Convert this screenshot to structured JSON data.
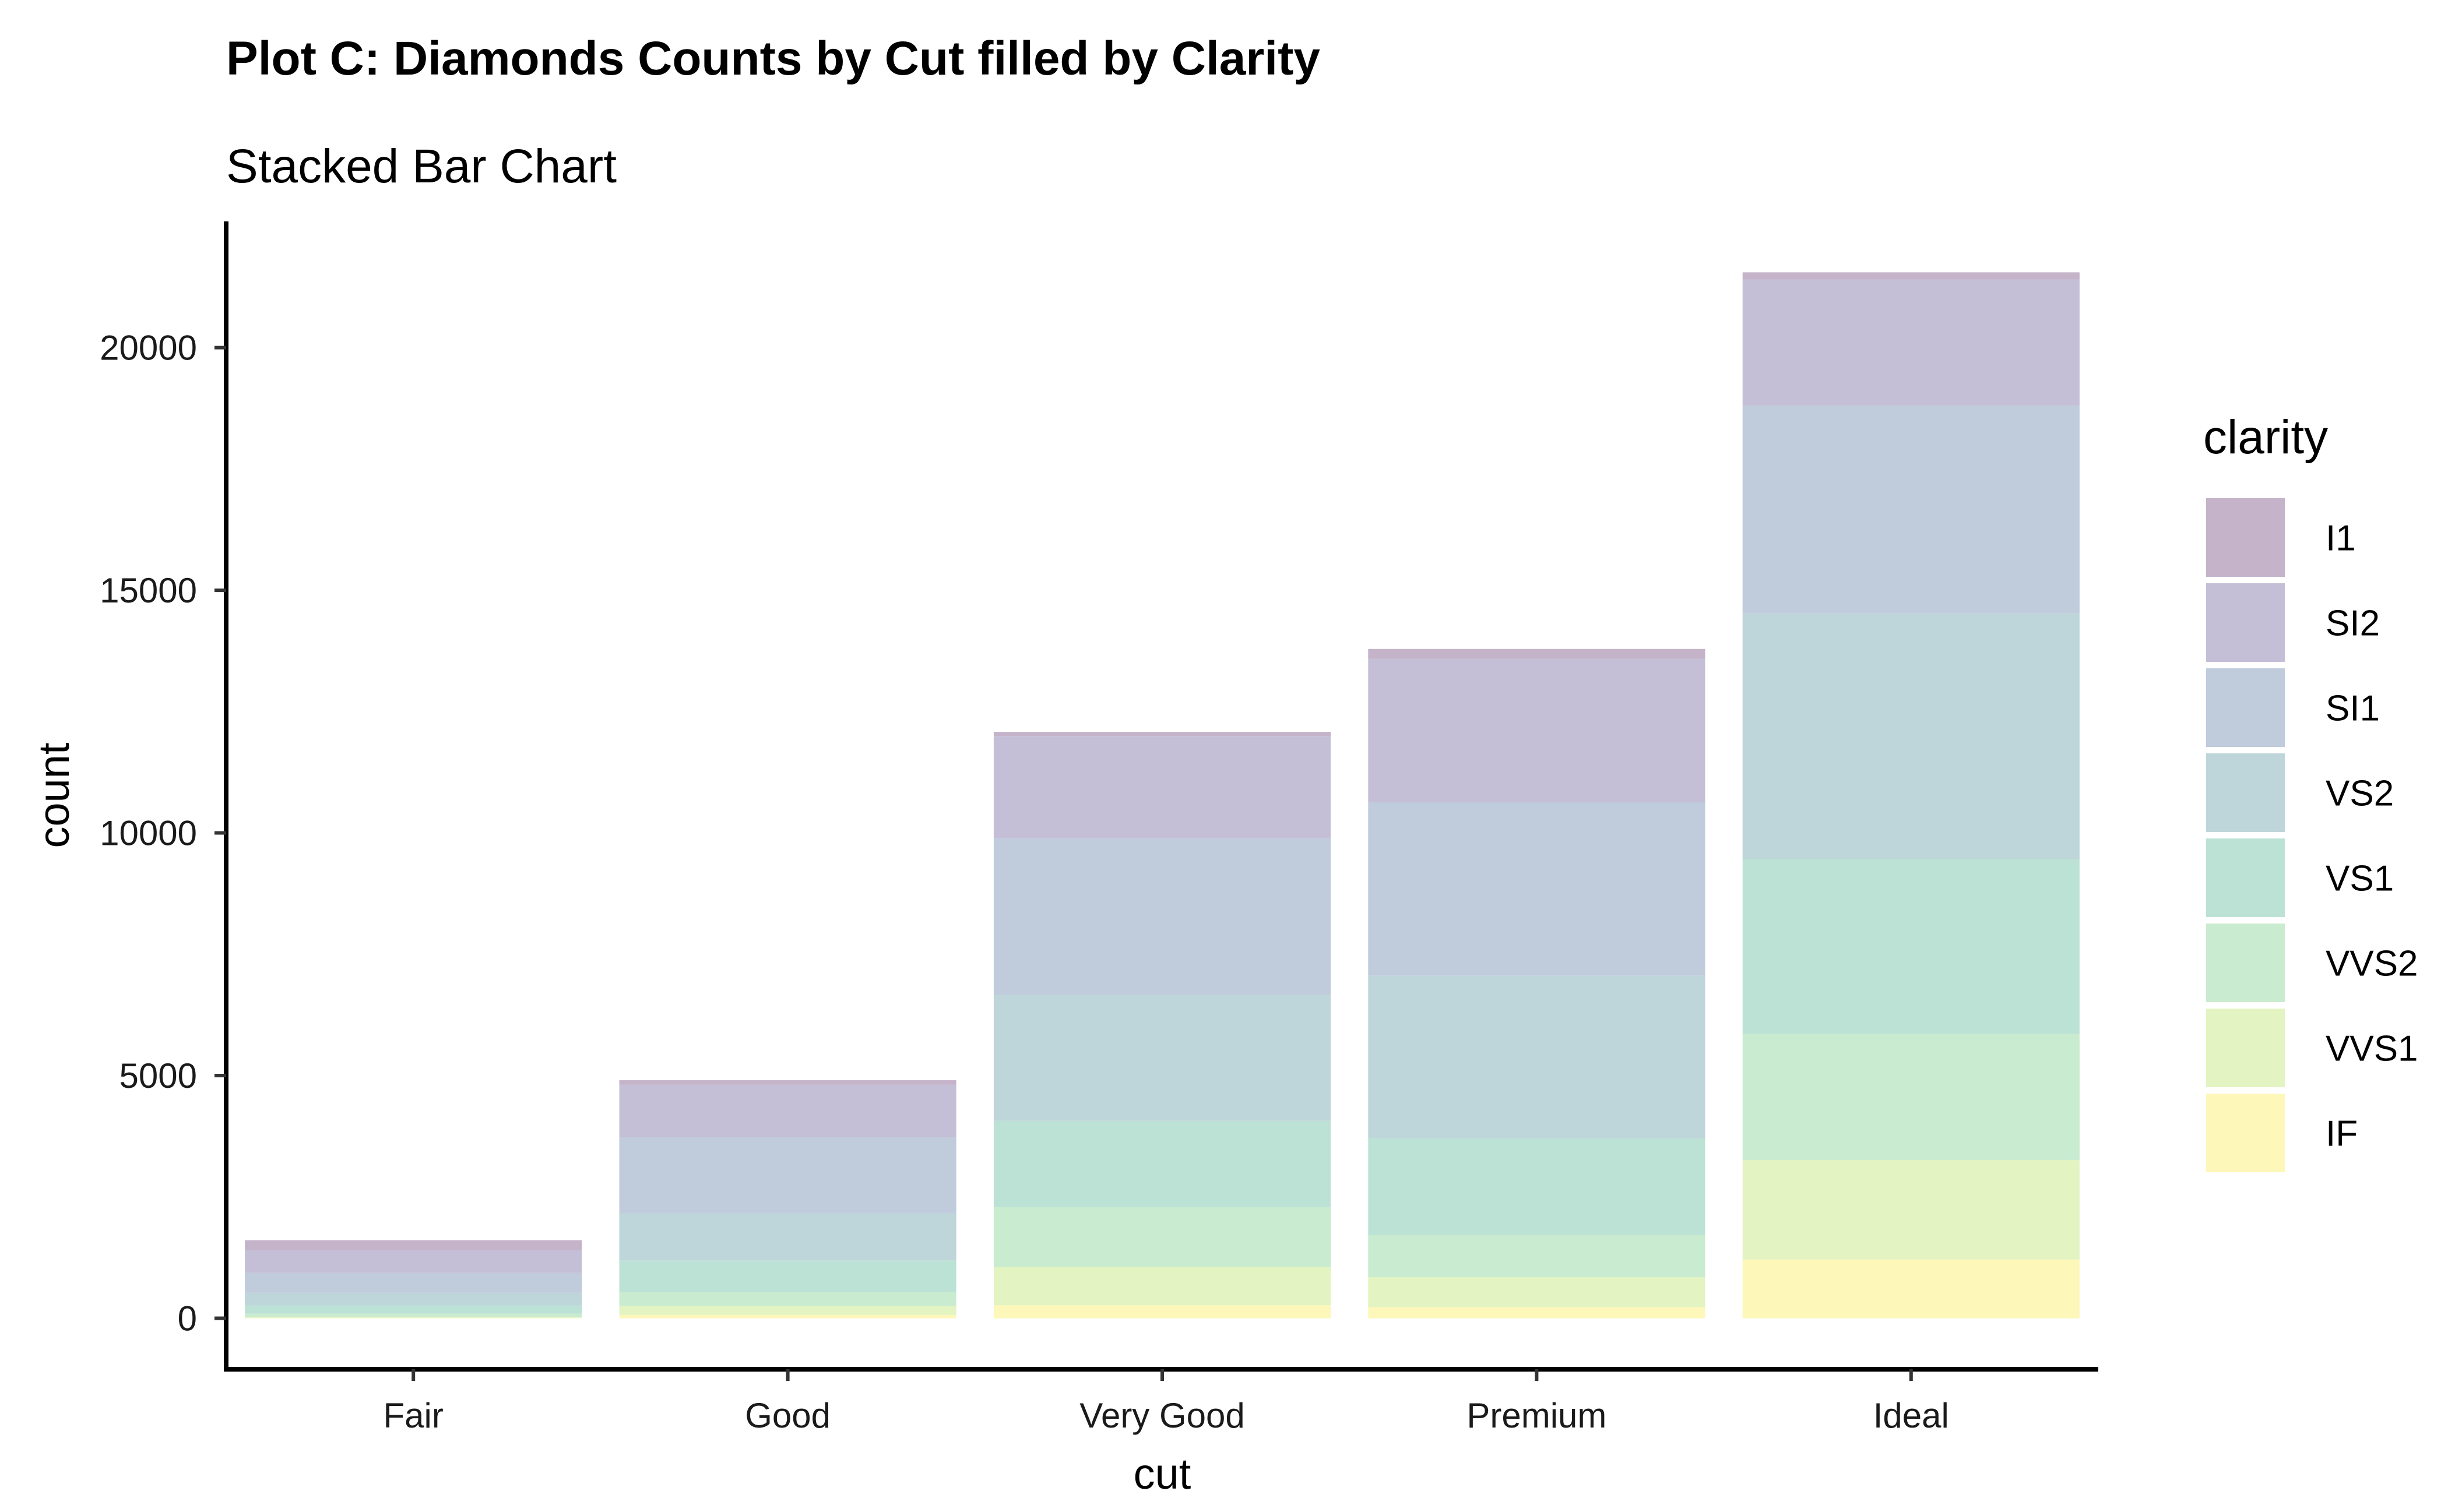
{
  "chart_data": {
    "type": "bar",
    "stacked": true,
    "title": "Plot C: Diamonds Counts by Cut filled by Clarity",
    "subtitle": "Stacked Bar Chart",
    "xlabel": "cut",
    "ylabel": "count",
    "categories": [
      "Fair",
      "Good",
      "Very Good",
      "Premium",
      "Ideal"
    ],
    "ylim": [
      -1050,
      22600
    ],
    "yticks": [
      0,
      5000,
      10000,
      15000,
      20000
    ],
    "ytick_labels": [
      "0",
      "5000",
      "10000",
      "15000",
      "20000"
    ],
    "legend_title": "clarity",
    "legend_position": "right",
    "grid": false,
    "series": [
      {
        "name": "IF",
        "color": "#FDF7BA",
        "values": [
          9,
          71,
          268,
          230,
          1212
        ]
      },
      {
        "name": "VVS1",
        "color": "#E3F3C2",
        "values": [
          17,
          186,
          789,
          616,
          2047
        ]
      },
      {
        "name": "VVS2",
        "color": "#C9EBCF",
        "values": [
          69,
          286,
          1235,
          870,
          2606
        ]
      },
      {
        "name": "VS1",
        "color": "#BCE2D6",
        "values": [
          170,
          648,
          1775,
          1989,
          3589
        ]
      },
      {
        "name": "VS2",
        "color": "#BED5DA",
        "values": [
          261,
          978,
          2591,
          3357,
          5071
        ]
      },
      {
        "name": "SI1",
        "color": "#C0CBDB",
        "values": [
          408,
          1560,
          3240,
          3575,
          4282
        ]
      },
      {
        "name": "SI2",
        "color": "#C4BFD6",
        "values": [
          466,
          1081,
          2100,
          2949,
          2598
        ]
      },
      {
        "name": "I1",
        "color": "#C5B3C9",
        "values": [
          210,
          96,
          84,
          205,
          146
        ]
      }
    ],
    "legend_order": [
      "I1",
      "SI2",
      "SI1",
      "VS2",
      "VS1",
      "VVS2",
      "VVS1",
      "IF"
    ]
  }
}
